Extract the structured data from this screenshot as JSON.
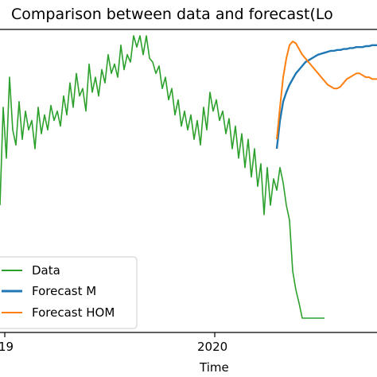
{
  "chart_data": {
    "type": "line",
    "title": "Comparison between data and forecast(Lo",
    "xlabel": "Time",
    "ylabel": "",
    "x_ticks": [
      "19",
      "2020"
    ],
    "grid": false,
    "legend_position": "bottom-left",
    "series": [
      {
        "name": "Data",
        "color": "#2ca02c",
        "x": [
          0,
          4,
          8,
          12,
          16,
          20,
          24,
          28,
          32,
          36,
          40,
          44,
          48,
          52,
          56,
          60,
          64,
          68,
          72,
          76,
          80,
          84,
          88,
          92,
          96,
          100,
          104,
          108,
          112,
          116,
          120,
          124,
          128,
          132,
          136,
          140,
          144,
          148,
          152,
          156,
          160,
          164,
          168,
          172,
          176,
          180,
          184,
          188,
          192,
          196,
          200,
          204,
          208,
          212,
          216,
          220,
          224,
          228,
          232,
          236,
          240,
          244,
          248,
          252,
          256,
          260,
          264,
          268,
          272,
          276,
          280,
          284,
          288,
          292,
          296,
          300,
          304,
          308,
          312,
          316,
          320,
          324,
          328,
          332,
          336,
          340,
          344,
          348,
          352,
          356,
          360,
          364,
          368,
          372,
          376,
          380,
          384,
          388,
          392,
          396,
          400,
          404,
          408
        ],
        "values": [
          0.1,
          0.62,
          0.35,
          0.78,
          0.5,
          0.42,
          0.65,
          0.45,
          0.6,
          0.5,
          0.55,
          0.4,
          0.62,
          0.48,
          0.58,
          0.5,
          0.63,
          0.55,
          0.6,
          0.52,
          0.68,
          0.58,
          0.75,
          0.62,
          0.8,
          0.68,
          0.72,
          0.6,
          0.85,
          0.7,
          0.78,
          0.68,
          0.82,
          0.75,
          0.9,
          0.8,
          0.85,
          0.78,
          0.95,
          0.82,
          0.9,
          0.86,
          1.0,
          0.94,
          1.0,
          0.9,
          1.0,
          0.88,
          0.86,
          0.8,
          0.84,
          0.72,
          0.78,
          0.66,
          0.72,
          0.58,
          0.66,
          0.52,
          0.6,
          0.5,
          0.58,
          0.45,
          0.55,
          0.42,
          0.62,
          0.5,
          0.7,
          0.6,
          0.66,
          0.55,
          0.6,
          0.48,
          0.56,
          0.4,
          0.52,
          0.35,
          0.48,
          0.3,
          0.45,
          0.25,
          0.4,
          0.2,
          0.32,
          0.05,
          0.3,
          0.1,
          0.24,
          0.18,
          0.3,
          0.22,
          0.1,
          0.02,
          -0.25,
          -0.35,
          -0.42,
          -0.5,
          -0.5,
          -0.5,
          -0.5,
          -0.5,
          -0.5,
          -0.5,
          -0.5
        ]
      },
      {
        "name": "Forecast M",
        "color": "#1f77b4",
        "x": [
          348,
          352,
          356,
          360,
          364,
          368,
          372,
          376,
          380,
          384,
          388,
          392,
          396,
          400,
          404,
          408,
          412,
          416,
          420,
          424,
          428,
          432,
          436,
          440,
          444,
          448,
          452,
          456,
          460,
          464,
          468,
          474
        ],
        "values": [
          0.4,
          0.55,
          0.65,
          0.7,
          0.74,
          0.77,
          0.8,
          0.82,
          0.84,
          0.86,
          0.87,
          0.88,
          0.89,
          0.9,
          0.905,
          0.91,
          0.915,
          0.92,
          0.92,
          0.925,
          0.925,
          0.93,
          0.93,
          0.935,
          0.935,
          0.94,
          0.94,
          0.94,
          0.945,
          0.945,
          0.95,
          0.95
        ]
      },
      {
        "name": "Forecast HOM",
        "color": "#ff7f0e",
        "x": [
          348,
          352,
          356,
          360,
          364,
          368,
          372,
          376,
          380,
          384,
          388,
          392,
          396,
          400,
          404,
          408,
          412,
          416,
          420,
          424,
          428,
          432,
          436,
          440,
          444,
          448,
          452,
          456,
          460,
          464,
          468,
          474
        ],
        "values": [
          0.45,
          0.62,
          0.78,
          0.88,
          0.95,
          0.97,
          0.96,
          0.93,
          0.9,
          0.88,
          0.86,
          0.84,
          0.82,
          0.8,
          0.78,
          0.76,
          0.74,
          0.73,
          0.72,
          0.72,
          0.73,
          0.75,
          0.77,
          0.78,
          0.79,
          0.8,
          0.8,
          0.79,
          0.78,
          0.78,
          0.77,
          0.77
        ]
      }
    ]
  }
}
